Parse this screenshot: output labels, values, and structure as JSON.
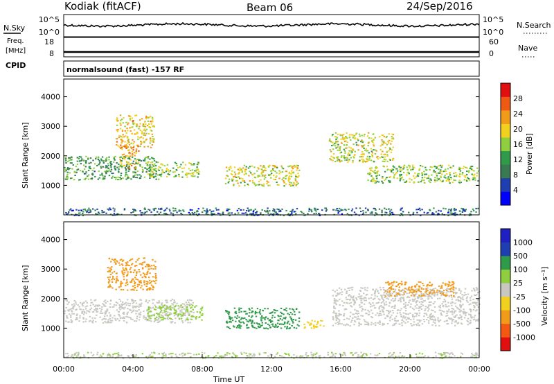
{
  "header": {
    "station": "Kodiak (fitACF)",
    "beam": "Beam 06",
    "date": "24/Sep/2016"
  },
  "top_panels": {
    "nsky_label": "N.Sky",
    "nsky_ticks": [
      "10^5",
      "10^0"
    ],
    "nsearch_label": "N.Search",
    "nsearch_ticks": [
      "10^5",
      "10^0"
    ],
    "freq_label_1": "Freq.",
    "freq_label_2": "[MHz]",
    "freq_ticks": [
      "18",
      "8"
    ],
    "nave_label": "Nave",
    "nave_ticks": [
      "60",
      "0"
    ],
    "cpid_label": "CPID",
    "cpid_text": "normalsound (fast) -157 RF"
  },
  "x_axis": {
    "label": "Time UT",
    "ticks": [
      "00:00",
      "04:00",
      "08:00",
      "12:00",
      "16:00",
      "20:00",
      "00:00"
    ]
  },
  "colors": {
    "power": [
      "#0000ff",
      "#1f3fb0",
      "#3a7a52",
      "#2f9a4a",
      "#8fcf3f",
      "#f2d020",
      "#f29a1a",
      "#ee5a14",
      "#e01010"
    ],
    "velocity": [
      "#e01010",
      "#f25a14",
      "#f29a1a",
      "#f2d020",
      "#c8c8c0",
      "#8fcf3f",
      "#2f9a4a",
      "#1f3fb0",
      "#2020c0"
    ]
  },
  "chart_data": [
    {
      "type": "heatmap",
      "panel": "power",
      "ylabel": "Slant Range [km]",
      "y_ticks": [
        "1000",
        "2000",
        "3000",
        "4000"
      ],
      "ylim": [
        0,
        4600
      ],
      "xlim_hours": [
        0,
        24
      ],
      "colorbar_label": "Power [dB]",
      "colorbar_ticks": [
        "4",
        "8",
        "12",
        "16",
        "20",
        "24",
        "28"
      ],
      "colorbar_range": [
        0,
        32
      ],
      "scatter_regions": [
        {
          "t0": 0.0,
          "t1": 5.5,
          "r0": 1200,
          "r1": 2000,
          "v": 12
        },
        {
          "t0": 3.0,
          "t1": 5.2,
          "r0": 2300,
          "r1": 3400,
          "v": 20
        },
        {
          "t0": 3.2,
          "t1": 4.3,
          "r0": 1600,
          "r1": 2400,
          "v": 22
        },
        {
          "t0": 4.8,
          "t1": 7.8,
          "r0": 1300,
          "r1": 1800,
          "v": 16
        },
        {
          "t0": 9.3,
          "t1": 13.6,
          "r0": 1000,
          "r1": 1700,
          "v": 18
        },
        {
          "t0": 15.3,
          "t1": 19.0,
          "r0": 1800,
          "r1": 2800,
          "v": 18
        },
        {
          "t0": 17.5,
          "t1": 24.0,
          "r0": 1100,
          "r1": 1700,
          "v": 16
        },
        {
          "t0": 0.0,
          "t1": 24.0,
          "r0": 0,
          "r1": 250,
          "v": 8
        }
      ]
    },
    {
      "type": "heatmap",
      "panel": "velocity",
      "ylabel": "Slant Range [km]",
      "y_ticks": [
        "1000",
        "2000",
        "3000",
        "4000"
      ],
      "ylim": [
        0,
        4600
      ],
      "xlim_hours": [
        0,
        24
      ],
      "colorbar_label": "Velocity [m s⁻¹]",
      "colorbar_ticks": [
        "1000",
        "500",
        "100",
        "25",
        "-25",
        "-100",
        "-500",
        "-1000"
      ],
      "colorbar_range": [
        -1000,
        1000
      ],
      "scatter_regions": [
        {
          "t0": 0.0,
          "t1": 7.5,
          "r0": 1200,
          "r1": 2000,
          "v": 0
        },
        {
          "t0": 2.5,
          "t1": 5.3,
          "r0": 2300,
          "r1": 3400,
          "v": -150
        },
        {
          "t0": 4.8,
          "t1": 8.0,
          "r0": 1300,
          "r1": 1800,
          "v": 60
        },
        {
          "t0": 9.3,
          "t1": 13.6,
          "r0": 1000,
          "r1": 1700,
          "v": 200
        },
        {
          "t0": 13.8,
          "t1": 15.0,
          "r0": 1000,
          "r1": 1300,
          "v": -70
        },
        {
          "t0": 15.5,
          "t1": 24.0,
          "r0": 1100,
          "r1": 2400,
          "v": 0
        },
        {
          "t0": 18.5,
          "t1": 22.5,
          "r0": 2100,
          "r1": 2600,
          "v": -300
        },
        {
          "t0": 0.0,
          "t1": 24.0,
          "r0": 0,
          "r1": 200,
          "v": 20
        }
      ]
    }
  ]
}
